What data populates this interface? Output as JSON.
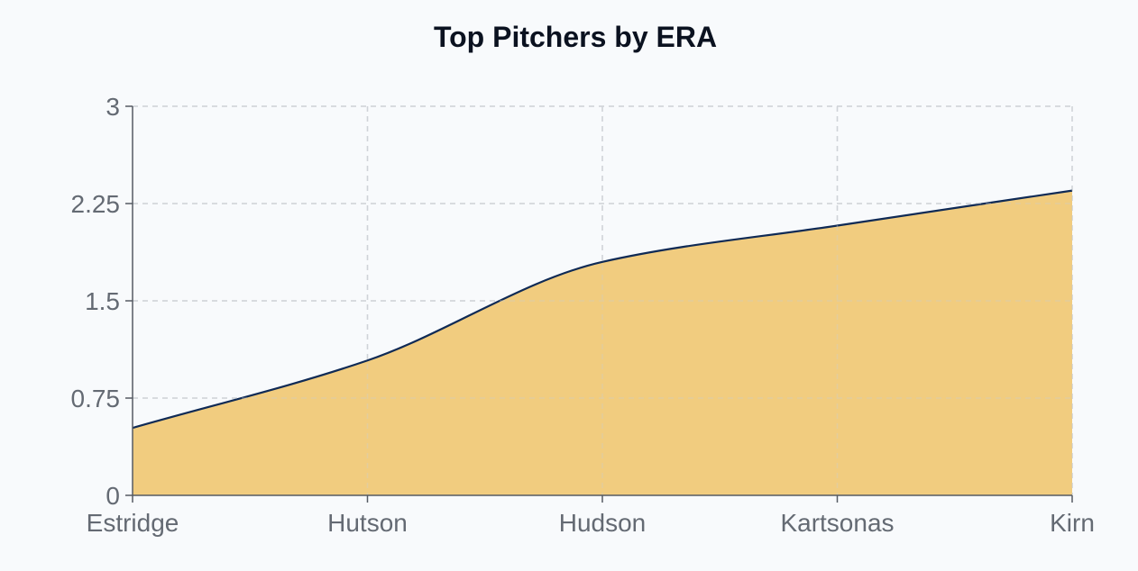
{
  "chart_data": {
    "type": "area",
    "title": "Top Pitchers by ERA",
    "xlabel": "",
    "ylabel": "",
    "categories": [
      "Estridge",
      "Hutson",
      "Hudson",
      "Kartsonas",
      "Kirn"
    ],
    "series": [
      {
        "values": [
          0.52,
          1.04,
          1.8,
          2.08,
          2.35
        ]
      }
    ],
    "ylim": [
      0,
      3
    ],
    "yticks": [
      "0",
      "0.75",
      "1.5",
      "2.25",
      "3"
    ],
    "grid": true,
    "colors": {
      "area_fill": "#f0c978",
      "line": "#0f2a55"
    }
  }
}
